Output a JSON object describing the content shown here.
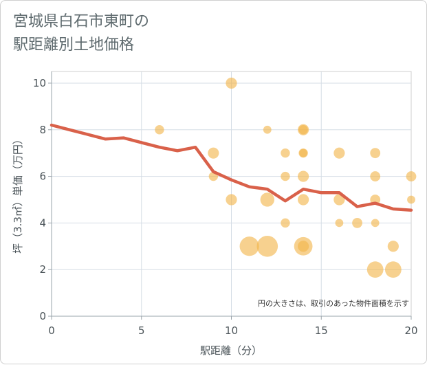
{
  "title": "宮城県白石市東町の\n駅距離別土地価格",
  "chart_data": {
    "type": "scatter",
    "xlabel": "駅距離（分）",
    "ylabel": "坪（3.3㎡）単価（万円）",
    "xlim": [
      0,
      20
    ],
    "ylim": [
      0,
      10.5
    ],
    "x_ticks": [
      0,
      5,
      10,
      15,
      20
    ],
    "y_ticks": [
      0,
      2,
      4,
      6,
      8,
      10
    ],
    "grid": true,
    "annotation": "円の大きさは、取引のあった物件面積を示す",
    "colors": {
      "bubble": "#f2b44a",
      "line": "#d9614a"
    },
    "bubbles": [
      {
        "x": 6,
        "y": 8,
        "size": 2
      },
      {
        "x": 9,
        "y": 7,
        "size": 3
      },
      {
        "x": 9,
        "y": 6,
        "size": 2
      },
      {
        "x": 10,
        "y": 10,
        "size": 3
      },
      {
        "x": 10,
        "y": 5,
        "size": 3
      },
      {
        "x": 11,
        "y": 3,
        "size": 10
      },
      {
        "x": 12,
        "y": 8,
        "size": 1.5
      },
      {
        "x": 12,
        "y": 5,
        "size": 5
      },
      {
        "x": 12,
        "y": 3,
        "size": 12
      },
      {
        "x": 13,
        "y": 7,
        "size": 2
      },
      {
        "x": 13,
        "y": 6,
        "size": 2
      },
      {
        "x": 13,
        "y": 4,
        "size": 2
      },
      {
        "x": 14,
        "y": 8,
        "size": 3
      },
      {
        "x": 14,
        "y": 8,
        "size": 2
      },
      {
        "x": 14,
        "y": 7,
        "size": 2
      },
      {
        "x": 14,
        "y": 7,
        "size": 1.5
      },
      {
        "x": 14,
        "y": 6,
        "size": 3
      },
      {
        "x": 14,
        "y": 5,
        "size": 3
      },
      {
        "x": 14,
        "y": 3,
        "size": 9
      },
      {
        "x": 14,
        "y": 3,
        "size": 3
      },
      {
        "x": 16,
        "y": 7,
        "size": 3
      },
      {
        "x": 16,
        "y": 5,
        "size": 3
      },
      {
        "x": 16,
        "y": 4,
        "size": 1.5
      },
      {
        "x": 17,
        "y": 4,
        "size": 2.5
      },
      {
        "x": 18,
        "y": 7,
        "size": 2.5
      },
      {
        "x": 18,
        "y": 6,
        "size": 2.5
      },
      {
        "x": 18,
        "y": 5,
        "size": 2.5
      },
      {
        "x": 18,
        "y": 4,
        "size": 1.5
      },
      {
        "x": 18,
        "y": 2,
        "size": 7
      },
      {
        "x": 19,
        "y": 3,
        "size": 3
      },
      {
        "x": 19,
        "y": 2,
        "size": 7
      },
      {
        "x": 20,
        "y": 6,
        "size": 2.5
      },
      {
        "x": 20,
        "y": 5,
        "size": 1.5
      }
    ],
    "line": {
      "x": [
        0,
        1,
        2,
        3,
        4,
        5,
        6,
        7,
        8,
        9,
        10,
        11,
        12,
        13,
        14,
        15,
        16,
        17,
        18,
        19,
        20
      ],
      "y": [
        8.2,
        8.0,
        7.8,
        7.6,
        7.65,
        7.45,
        7.25,
        7.1,
        7.25,
        6.2,
        5.85,
        5.55,
        5.45,
        4.95,
        5.45,
        5.3,
        5.3,
        4.7,
        4.85,
        4.6,
        4.55
      ]
    }
  }
}
